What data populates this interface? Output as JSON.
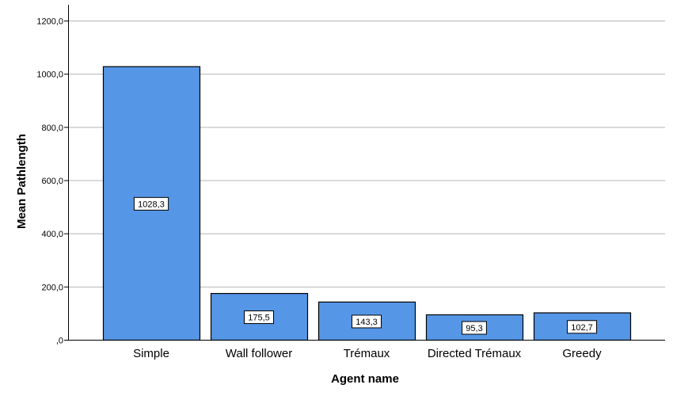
{
  "chart_data": {
    "type": "bar",
    "categories": [
      "Simple",
      "Wall follower",
      "Trémaux",
      "Directed Trémaux",
      "Greedy"
    ],
    "values": [
      1028.3,
      175.5,
      143.3,
      95.3,
      102.7
    ],
    "data_labels": [
      "1028,3",
      "175,5",
      "143,3",
      "95,3",
      "102,7"
    ],
    "xlabel": "Agent name",
    "ylabel": "Mean Pathlength",
    "ylim": [
      0,
      1200
    ],
    "yticks": [
      0,
      200,
      400,
      600,
      800,
      1000,
      1200
    ],
    "ytick_labels": [
      ",0",
      "200,0",
      "400,0",
      "600,0",
      "800,0",
      "1000,0",
      "1200,0"
    ],
    "grid": true,
    "colors": {
      "bar_fill": "#5596e6",
      "bar_stroke": "#000000",
      "grid": "#b4b4b4",
      "label_box_fill": "#ffffff"
    }
  }
}
